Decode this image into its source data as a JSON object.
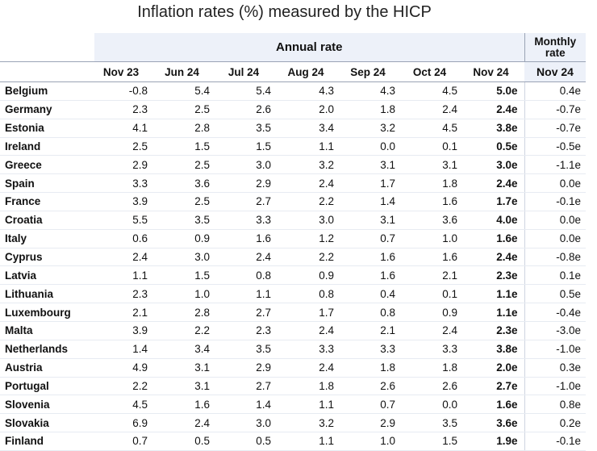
{
  "title": "Inflation rates (%) measured by the HICP",
  "chart_data": {
    "type": "table",
    "title": "Inflation rates (%) measured by the HICP",
    "group_headers": {
      "annual": "Annual rate",
      "monthly": "Monthly rate"
    },
    "columns": [
      "Nov 23",
      "Jun 24",
      "Jul 24",
      "Aug 24",
      "Sep 24",
      "Oct 24",
      "Nov 24"
    ],
    "monthly_column": "Nov 24",
    "rows": [
      {
        "country": "Belgium",
        "annual": [
          "-0.8",
          "5.4",
          "5.4",
          "4.3",
          "4.3",
          "4.5",
          "5.0e"
        ],
        "monthly": "0.4e"
      },
      {
        "country": "Germany",
        "annual": [
          "2.3",
          "2.5",
          "2.6",
          "2.0",
          "1.8",
          "2.4",
          "2.4e"
        ],
        "monthly": "-0.7e"
      },
      {
        "country": "Estonia",
        "annual": [
          "4.1",
          "2.8",
          "3.5",
          "3.4",
          "3.2",
          "4.5",
          "3.8e"
        ],
        "monthly": "-0.7e"
      },
      {
        "country": "Ireland",
        "annual": [
          "2.5",
          "1.5",
          "1.5",
          "1.1",
          "0.0",
          "0.1",
          "0.5e"
        ],
        "monthly": "-0.5e"
      },
      {
        "country": "Greece",
        "annual": [
          "2.9",
          "2.5",
          "3.0",
          "3.2",
          "3.1",
          "3.1",
          "3.0e"
        ],
        "monthly": "-1.1e"
      },
      {
        "country": "Spain",
        "annual": [
          "3.3",
          "3.6",
          "2.9",
          "2.4",
          "1.7",
          "1.8",
          "2.4e"
        ],
        "monthly": "0.0e"
      },
      {
        "country": "France",
        "annual": [
          "3.9",
          "2.5",
          "2.7",
          "2.2",
          "1.4",
          "1.6",
          "1.7e"
        ],
        "monthly": "-0.1e"
      },
      {
        "country": "Croatia",
        "annual": [
          "5.5",
          "3.5",
          "3.3",
          "3.0",
          "3.1",
          "3.6",
          "4.0e"
        ],
        "monthly": "0.0e"
      },
      {
        "country": "Italy",
        "annual": [
          "0.6",
          "0.9",
          "1.6",
          "1.2",
          "0.7",
          "1.0",
          "1.6e"
        ],
        "monthly": "0.0e"
      },
      {
        "country": "Cyprus",
        "annual": [
          "2.4",
          "3.0",
          "2.4",
          "2.2",
          "1.6",
          "1.6",
          "2.4e"
        ],
        "monthly": "-0.8e"
      },
      {
        "country": "Latvia",
        "annual": [
          "1.1",
          "1.5",
          "0.8",
          "0.9",
          "1.6",
          "2.1",
          "2.3e"
        ],
        "monthly": "0.1e"
      },
      {
        "country": "Lithuania",
        "annual": [
          "2.3",
          "1.0",
          "1.1",
          "0.8",
          "0.4",
          "0.1",
          "1.1e"
        ],
        "monthly": "0.5e"
      },
      {
        "country": "Luxembourg",
        "annual": [
          "2.1",
          "2.8",
          "2.7",
          "1.7",
          "0.8",
          "0.9",
          "1.1e"
        ],
        "monthly": "-0.4e"
      },
      {
        "country": "Malta",
        "annual": [
          "3.9",
          "2.2",
          "2.3",
          "2.4",
          "2.1",
          "2.4",
          "2.3e"
        ],
        "monthly": "-3.0e"
      },
      {
        "country": "Netherlands",
        "annual": [
          "1.4",
          "3.4",
          "3.5",
          "3.3",
          "3.3",
          "3.3",
          "3.8e"
        ],
        "monthly": "-1.0e"
      },
      {
        "country": "Austria",
        "annual": [
          "4.9",
          "3.1",
          "2.9",
          "2.4",
          "1.8",
          "1.8",
          "2.0e"
        ],
        "monthly": "0.3e"
      },
      {
        "country": "Portugal",
        "annual": [
          "2.2",
          "3.1",
          "2.7",
          "1.8",
          "2.6",
          "2.6",
          "2.7e"
        ],
        "monthly": "-1.0e"
      },
      {
        "country": "Slovenia",
        "annual": [
          "4.5",
          "1.6",
          "1.4",
          "1.1",
          "0.7",
          "0.0",
          "1.6e"
        ],
        "monthly": "0.8e"
      },
      {
        "country": "Slovakia",
        "annual": [
          "6.9",
          "2.4",
          "3.0",
          "3.2",
          "2.9",
          "3.5",
          "3.6e"
        ],
        "monthly": "0.2e"
      },
      {
        "country": "Finland",
        "annual": [
          "0.7",
          "0.5",
          "0.5",
          "1.1",
          "1.0",
          "1.5",
          "1.9e"
        ],
        "monthly": "-0.1e"
      }
    ]
  }
}
